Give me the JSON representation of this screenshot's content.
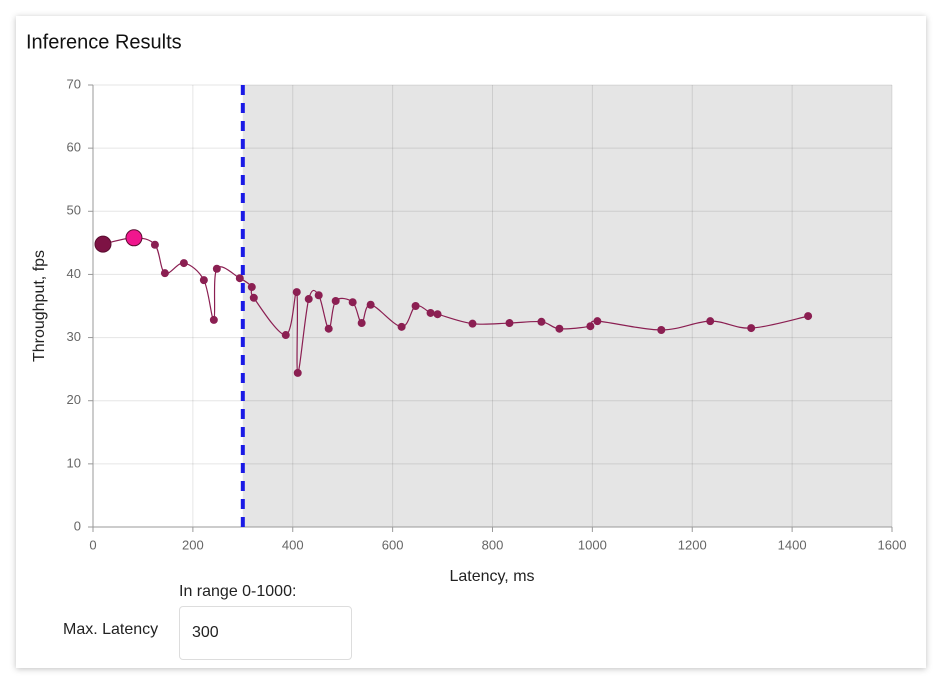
{
  "title": "Inference Results",
  "chart_data": {
    "type": "line",
    "x_label": "Latency, ms",
    "y_label": "Throughput, fps",
    "x": [
      20,
      82,
      124,
      144,
      182,
      222,
      242,
      248,
      294,
      318,
      322,
      386,
      408,
      410,
      432,
      452,
      472,
      486,
      520,
      538,
      556,
      618,
      646,
      676,
      690,
      760,
      834,
      898,
      934,
      996,
      1010,
      1138,
      1236,
      1318,
      1432
    ],
    "series": [
      {
        "color": "#8b1f52",
        "values": [
          44.8,
          45.8,
          44.7,
          40.2,
          41.8,
          39.1,
          32.8,
          40.9,
          39.4,
          38.0,
          36.3,
          30.4,
          37.2,
          24.4,
          36.1,
          36.7,
          31.4,
          35.8,
          35.6,
          32.3,
          35.2,
          31.7,
          35.0,
          33.9,
          33.7,
          32.2,
          32.3,
          32.5,
          31.4,
          31.8,
          32.6,
          31.2,
          32.6,
          31.5,
          33.4
        ]
      }
    ],
    "highlighted": [
      {
        "index": 0,
        "color": "#7d1244"
      },
      {
        "index": 1,
        "color": "#f0168e"
      }
    ],
    "threshold_color": "#1a1ae6",
    "shade_color": "#e5e5e5",
    "xlim": [
      0,
      1600
    ],
    "xticks": [
      0,
      200,
      400,
      600,
      800,
      1000,
      1200,
      1400,
      1600
    ],
    "ylim": [
      0,
      70
    ],
    "yticks": [
      0,
      10,
      20,
      30,
      40,
      50,
      60,
      70
    ],
    "grid": true
  },
  "form": {
    "hint": "In range 0-1000:",
    "label": "Max. Latency",
    "value": 300
  }
}
